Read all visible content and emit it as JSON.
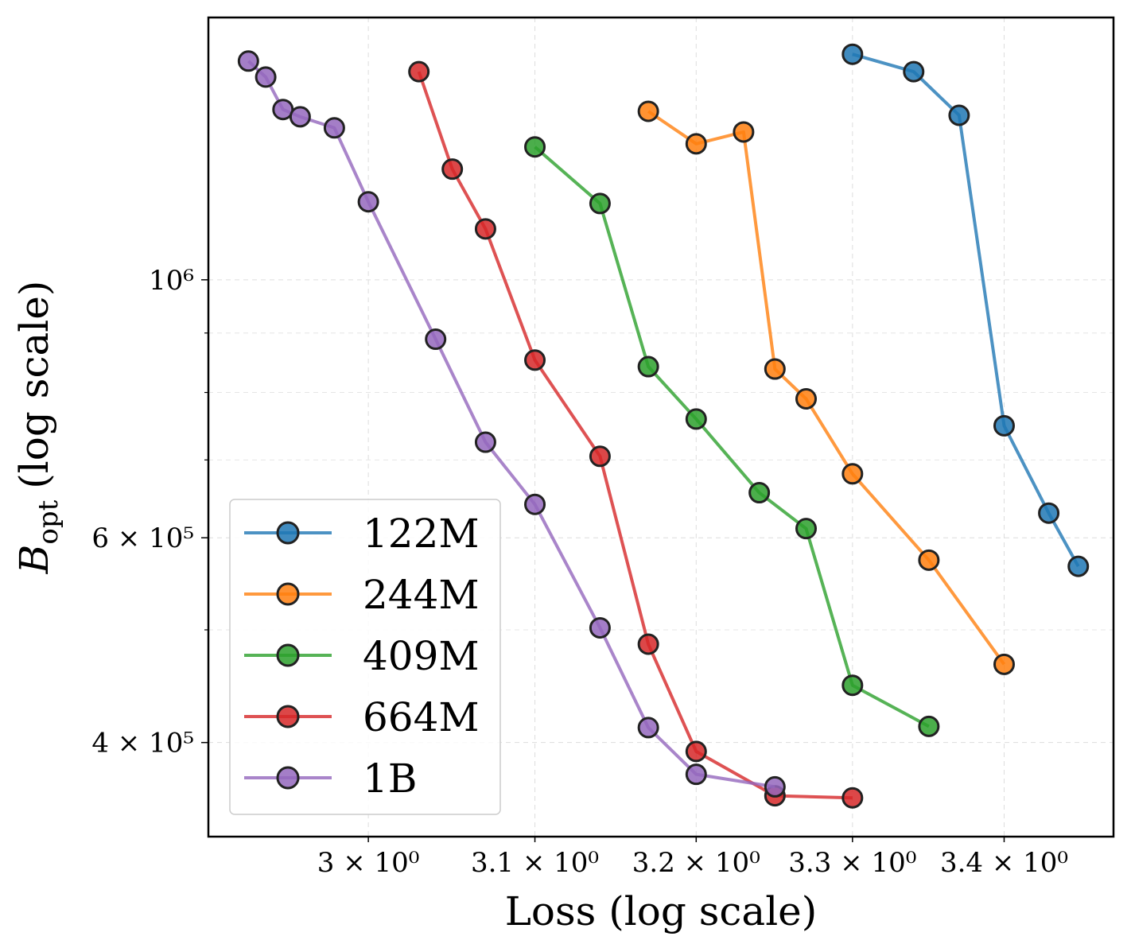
{
  "chart_data": {
    "type": "line",
    "title": "",
    "xlabel": "Loss (log scale)",
    "ylabel_symbol": "B",
    "ylabel_subscript": "opt",
    "ylabel_text": "(log scale)",
    "xscale": "log",
    "yscale": "log",
    "xlim": [
      2.907,
      3.474
    ],
    "ylim": [
      332000,
      1681000
    ],
    "grid": true,
    "legend_position": "lower-left",
    "x_ticks": [
      {
        "value": 3.0,
        "label": "3 × 10⁰"
      },
      {
        "value": 3.1,
        "label": "3.1 × 10⁰"
      },
      {
        "value": 3.2,
        "label": "3.2 × 10⁰"
      },
      {
        "value": 3.3,
        "label": "3.3 × 10⁰"
      },
      {
        "value": 3.4,
        "label": "3.4 × 10⁰"
      }
    ],
    "y_ticks": [
      {
        "value": 1000000,
        "label": "10⁶"
      },
      {
        "value": 600000,
        "label": "6 × 10⁵"
      },
      {
        "value": 400000,
        "label": "4 × 10⁵"
      }
    ],
    "y_minor_ticks": [
      500000,
      700000,
      800000,
      900000
    ],
    "series": [
      {
        "name": "122M",
        "color": "#1f77b4",
        "x": [
          3.3,
          3.34,
          3.37,
          3.4,
          3.43,
          3.45
        ],
        "y": [
          1563000,
          1510000,
          1385000,
          749000,
          630000,
          567000
        ]
      },
      {
        "name": "244M",
        "color": "#ff7f0e",
        "x": [
          3.17,
          3.2,
          3.23,
          3.25,
          3.27,
          3.3,
          3.35,
          3.4
        ],
        "y": [
          1396000,
          1309000,
          1340000,
          838000,
          790000,
          681000,
          574000,
          467000
        ]
      },
      {
        "name": "409M",
        "color": "#2ca02c",
        "x": [
          3.1,
          3.14,
          3.17,
          3.2,
          3.24,
          3.27,
          3.3,
          3.35
        ],
        "y": [
          1301000,
          1163000,
          842000,
          759000,
          656000,
          611000,
          448000,
          413000
        ]
      },
      {
        "name": "664M",
        "color": "#d62728",
        "x": [
          3.03,
          3.05,
          3.07,
          3.1,
          3.14,
          3.17,
          3.2,
          3.25,
          3.3
        ],
        "y": [
          1510000,
          1245000,
          1106000,
          853000,
          705000,
          486000,
          393000,
          360000,
          358500
        ]
      },
      {
        "name": "1B",
        "color": "#9467bd",
        "x": [
          2.93,
          2.94,
          2.95,
          2.96,
          2.98,
          3.0,
          3.04,
          3.07,
          3.1,
          3.14,
          3.17,
          3.2,
          3.25
        ],
        "y": [
          1542000,
          1494000,
          1401000,
          1381000,
          1351000,
          1167000,
          889000,
          725000,
          641000,
          502000,
          412000,
          375600,
          366400
        ]
      }
    ]
  }
}
